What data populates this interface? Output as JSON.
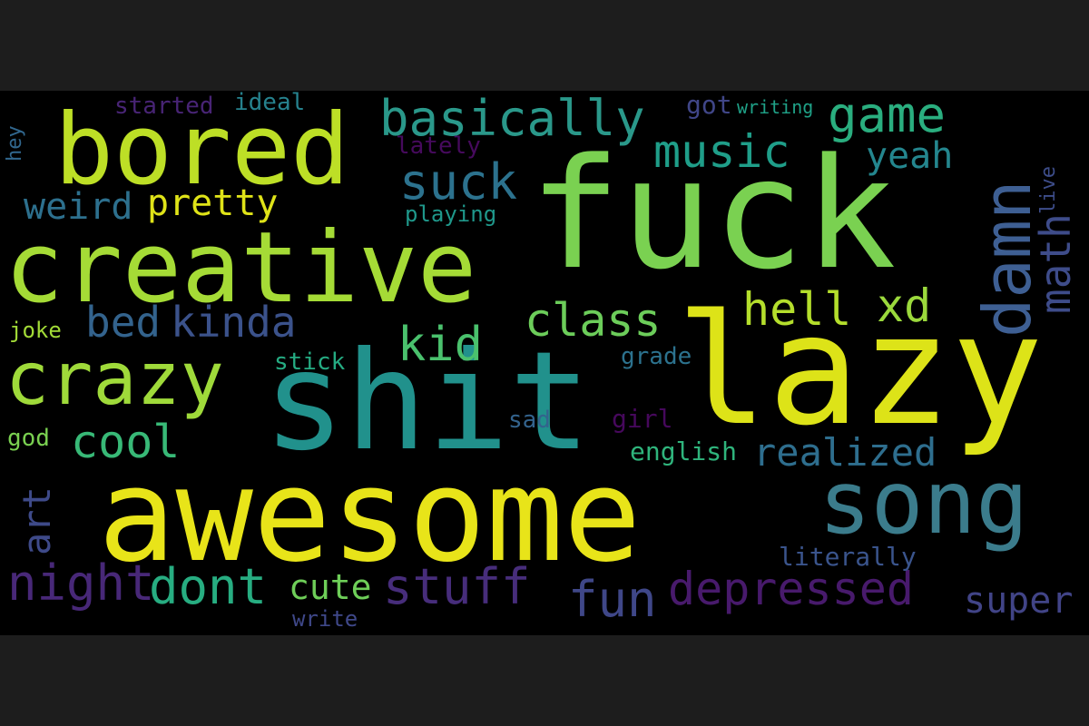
{
  "colors": {
    "outer_background": "#1d1d1d",
    "canvas_background": "#000000"
  },
  "words": [
    {
      "id": "fuck",
      "text": "fuck",
      "color": "#7ad151"
    },
    {
      "id": "lazy",
      "text": "lazy",
      "color": "#dde318"
    },
    {
      "id": "awesome",
      "text": "awesome",
      "color": "#e8e419"
    },
    {
      "id": "shit",
      "text": "shit",
      "color": "#21918c"
    },
    {
      "id": "creative",
      "text": "creative",
      "color": "#a5db36"
    },
    {
      "id": "bored",
      "text": "bored",
      "color": "#bddf26"
    },
    {
      "id": "song",
      "text": "song",
      "color": "#3b7c8c"
    },
    {
      "id": "crazy",
      "text": "crazy",
      "color": "#9fda3a"
    },
    {
      "id": "damn",
      "text": "damn",
      "color": "#3e5f93"
    },
    {
      "id": "basically",
      "text": "basically",
      "color": "#2a988a"
    },
    {
      "id": "game",
      "text": "game",
      "color": "#2aae7f"
    },
    {
      "id": "music",
      "text": "music",
      "color": "#1f9e89"
    },
    {
      "id": "suck",
      "text": "suck",
      "color": "#2c728e"
    },
    {
      "id": "yeah",
      "text": "yeah",
      "color": "#24868e"
    },
    {
      "id": "math",
      "text": "math",
      "color": "#3e4c8a"
    },
    {
      "id": "live",
      "text": "live",
      "color": "#3d4d8a"
    },
    {
      "id": "weird",
      "text": "weird",
      "color": "#2d708e"
    },
    {
      "id": "pretty",
      "text": "pretty",
      "color": "#dfe318"
    },
    {
      "id": "hell",
      "text": "hell",
      "color": "#b4de2c"
    },
    {
      "id": "xd",
      "text": "xd",
      "color": "#9bd93c"
    },
    {
      "id": "class",
      "text": "class",
      "color": "#6ccd5a"
    },
    {
      "id": "kid",
      "text": "kid",
      "color": "#4ac16d"
    },
    {
      "id": "bed",
      "text": "bed",
      "color": "#33638d"
    },
    {
      "id": "kinda",
      "text": "kinda",
      "color": "#3b528b"
    },
    {
      "id": "cool",
      "text": "cool",
      "color": "#38b977"
    },
    {
      "id": "realized",
      "text": "realized",
      "color": "#2e6e8e"
    },
    {
      "id": "art",
      "text": "art",
      "color": "#3e4a89"
    },
    {
      "id": "night",
      "text": "night",
      "color": "#482878"
    },
    {
      "id": "dont",
      "text": "dont",
      "color": "#27ad81"
    },
    {
      "id": "stuff",
      "text": "stuff",
      "color": "#472d7b"
    },
    {
      "id": "fun",
      "text": "fun",
      "color": "#3f4788"
    },
    {
      "id": "depressed",
      "text": "depressed",
      "color": "#481a6c"
    },
    {
      "id": "super",
      "text": "super",
      "color": "#414487"
    },
    {
      "id": "cute",
      "text": "cute",
      "color": "#6ece58"
    },
    {
      "id": "started",
      "text": "started",
      "color": "#482475"
    },
    {
      "id": "ideal",
      "text": "ideal",
      "color": "#26828e"
    },
    {
      "id": "got",
      "text": "got",
      "color": "#404688"
    },
    {
      "id": "writing",
      "text": "writing",
      "color": "#1fa187"
    },
    {
      "id": "hey",
      "text": "hey",
      "color": "#31678e"
    },
    {
      "id": "lately",
      "text": "lately",
      "color": "#460a5d"
    },
    {
      "id": "playing",
      "text": "playing",
      "color": "#1f988b"
    },
    {
      "id": "joke",
      "text": "joke",
      "color": "#a2da37"
    },
    {
      "id": "stick",
      "text": "stick",
      "color": "#25ab82"
    },
    {
      "id": "grade",
      "text": "grade",
      "color": "#2c728e"
    },
    {
      "id": "sad",
      "text": "sad",
      "color": "#33638d"
    },
    {
      "id": "girl",
      "text": "girl",
      "color": "#46085c"
    },
    {
      "id": "god",
      "text": "god",
      "color": "#7ad151"
    },
    {
      "id": "english",
      "text": "english",
      "color": "#2fb47c"
    },
    {
      "id": "literally",
      "text": "literally",
      "color": "#3a548c"
    },
    {
      "id": "write",
      "text": "write",
      "color": "#3f4889"
    }
  ]
}
